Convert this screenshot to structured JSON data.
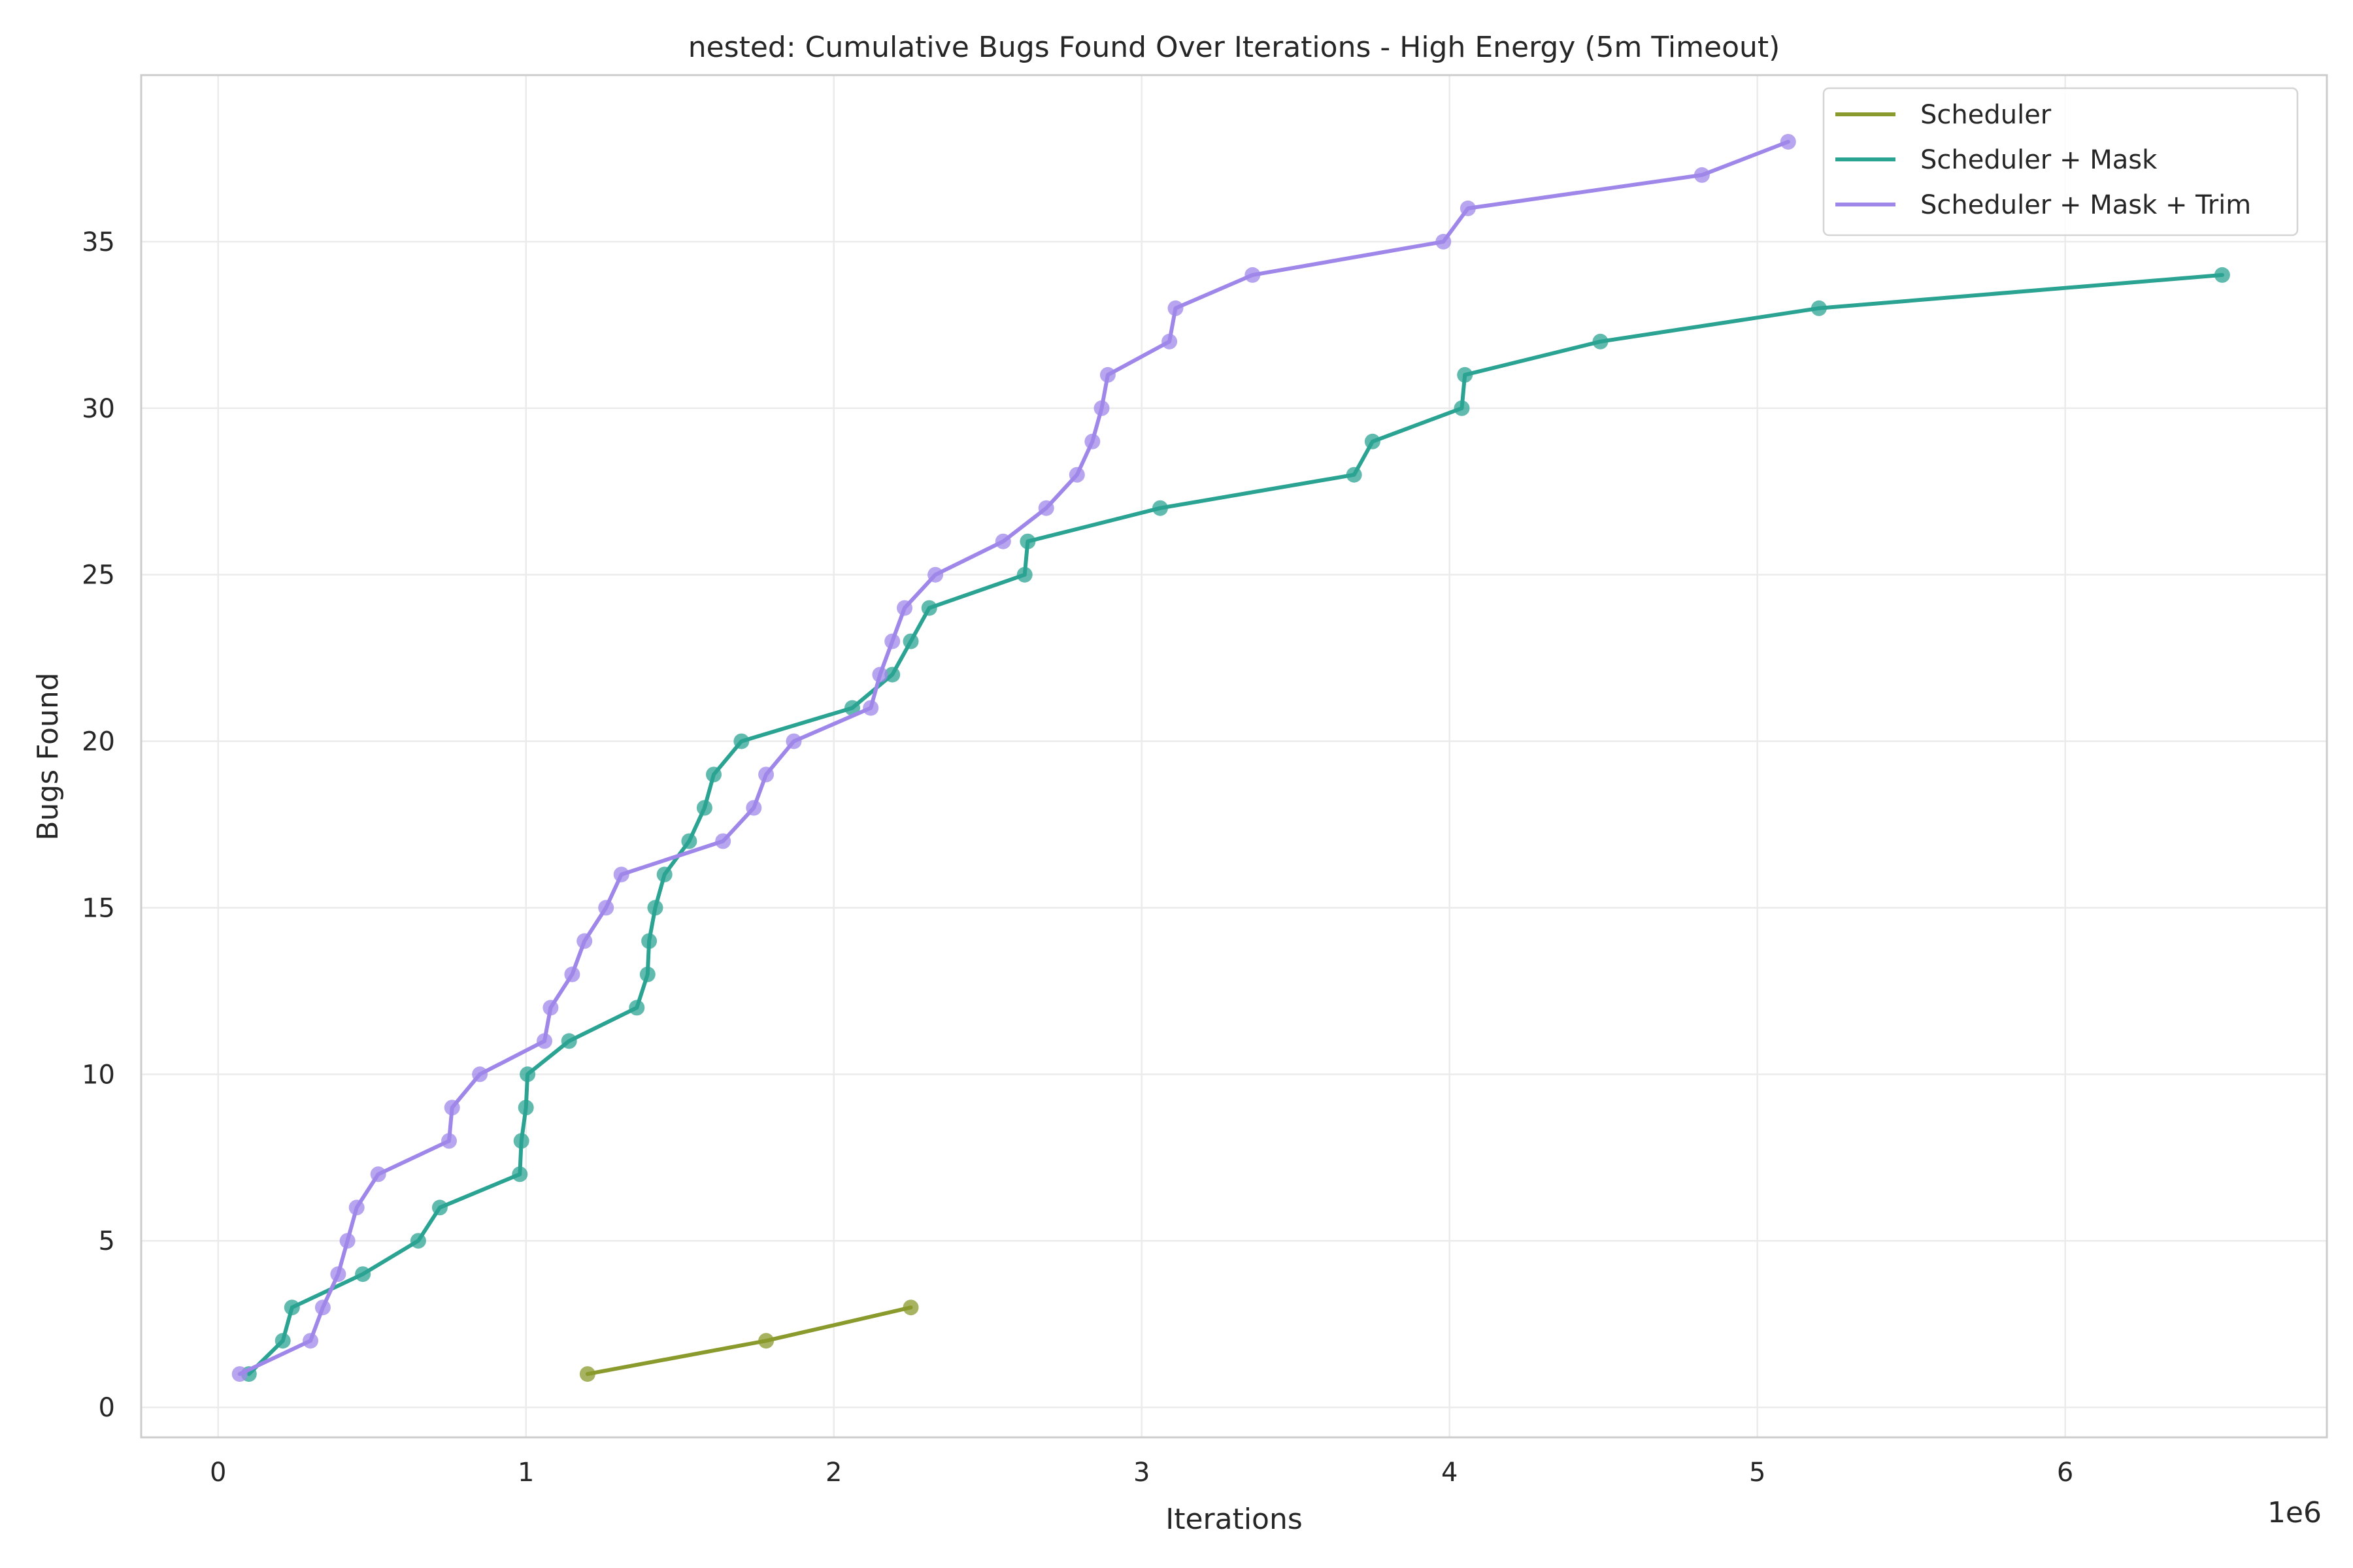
{
  "chart_data": {
    "type": "line",
    "title": "nested: Cumulative Bugs Found Over Iterations - High Energy (5m Timeout)",
    "xlabel": "Iterations",
    "ylabel": "Bugs Found",
    "x_offset_label": "1e6",
    "xlim": [
      -250000,
      6850000
    ],
    "ylim": [
      -0.9,
      40.0
    ],
    "x_ticks": [
      0,
      1000000,
      2000000,
      3000000,
      4000000,
      5000000,
      6000000
    ],
    "x_tick_labels": [
      "0",
      "1",
      "2",
      "3",
      "4",
      "5",
      "6"
    ],
    "y_ticks": [
      0,
      5,
      10,
      15,
      20,
      25,
      30,
      35
    ],
    "y_tick_labels": [
      "0",
      "5",
      "10",
      "15",
      "20",
      "25",
      "30",
      "35"
    ],
    "grid": true,
    "legend_position": "top-right",
    "series": [
      {
        "name": "Scheduler",
        "color": "#8b9a2c",
        "x": [
          1200000,
          1780000,
          2250000
        ],
        "y": [
          1,
          2,
          3
        ]
      },
      {
        "name": "Scheduler + Mask",
        "color": "#2ba393",
        "x": [
          100000,
          210000,
          240000,
          470000,
          650000,
          720000,
          980000,
          985000,
          1000000,
          1005000,
          1140000,
          1360000,
          1395000,
          1400000,
          1420000,
          1450000,
          1530000,
          1580000,
          1610000,
          1700000,
          2060000,
          2190000,
          2250000,
          2310000,
          2620000,
          2630000,
          3060000,
          3690000,
          3750000,
          4040000,
          4050000,
          4490000,
          5200000,
          6510000
        ],
        "y": [
          1,
          2,
          3,
          4,
          5,
          6,
          7,
          8,
          9,
          10,
          11,
          12,
          13,
          14,
          15,
          16,
          17,
          18,
          19,
          20,
          21,
          22,
          23,
          24,
          25,
          26,
          27,
          28,
          29,
          30,
          31,
          32,
          33,
          34
        ]
      },
      {
        "name": "Scheduler + Mask + Trim",
        "color": "#9f87ea",
        "x": [
          70000,
          300000,
          340000,
          390000,
          420000,
          450000,
          520000,
          750000,
          760000,
          850000,
          1060000,
          1080000,
          1150000,
          1190000,
          1260000,
          1310000,
          1640000,
          1740000,
          1780000,
          1870000,
          2120000,
          2150000,
          2190000,
          2230000,
          2330000,
          2550000,
          2690000,
          2790000,
          2840000,
          2870000,
          2890000,
          3090000,
          3110000,
          3360000,
          3980000,
          4060000,
          4820000,
          5100000
        ],
        "y": [
          1,
          2,
          3,
          4,
          5,
          6,
          7,
          8,
          9,
          10,
          11,
          12,
          13,
          14,
          15,
          16,
          17,
          18,
          19,
          20,
          21,
          22,
          23,
          24,
          25,
          26,
          27,
          28,
          29,
          30,
          31,
          32,
          33,
          34,
          35,
          36,
          37,
          38
        ]
      }
    ]
  }
}
